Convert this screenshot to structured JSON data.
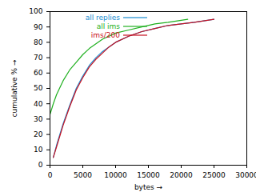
{
  "chart_data": {
    "type": "line",
    "xlabel": "bytes",
    "ylabel": "cumulative %",
    "xlim": [
      0,
      30000
    ],
    "xticks": [
      0,
      5000,
      10000,
      15000,
      20000,
      25000,
      30000
    ],
    "ylim": [
      0,
      100
    ],
    "yticks": [
      0,
      10,
      20,
      30,
      40,
      50,
      60,
      70,
      80,
      90,
      100
    ],
    "grid": false,
    "legend": "top-right",
    "series": [
      {
        "name": "all replies",
        "color": "#1a8cd0",
        "x": [
          500,
          1000,
          2000,
          3000,
          4000,
          5000,
          6000,
          7000,
          8000,
          9000,
          10000,
          12000,
          14000,
          16000,
          18000,
          20000,
          22000,
          25000
        ],
        "values": [
          5,
          13,
          27,
          39,
          50,
          58,
          65,
          70,
          74,
          77,
          80,
          84,
          87,
          89,
          91,
          92,
          93,
          95
        ]
      },
      {
        "name": "all ims",
        "color": "#20b020",
        "x": [
          0,
          500,
          1000,
          2000,
          3000,
          4000,
          5000,
          6000,
          7000,
          8000,
          10000,
          12000,
          14000,
          16000,
          18000,
          21000
        ],
        "values": [
          33,
          40,
          46,
          55,
          62,
          67,
          72,
          76,
          79,
          82,
          86,
          88,
          90,
          92,
          93,
          95
        ]
      },
      {
        "name": "ims/200",
        "color": "#c81020",
        "x": [
          500,
          1000,
          2000,
          3000,
          4000,
          5000,
          6000,
          7000,
          8000,
          9000,
          10000,
          12000,
          14000,
          16000,
          18000,
          20000,
          22000,
          25000
        ],
        "values": [
          5,
          12,
          26,
          38,
          49,
          57,
          64,
          69,
          73,
          77,
          80,
          84,
          87,
          89,
          91,
          92,
          93,
          95
        ]
      }
    ]
  }
}
